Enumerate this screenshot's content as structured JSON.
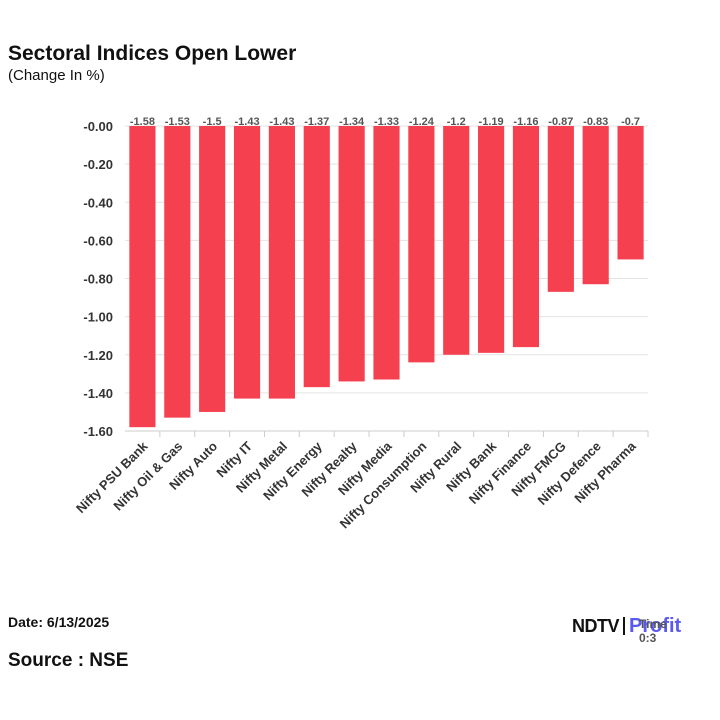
{
  "chart_data": {
    "type": "bar",
    "title": "Sectoral Indices Open Lower",
    "subtitle": "(Change In %)",
    "categories": [
      "Nifty PSU Bank",
      "Nifty Oil & Gas",
      "Nifty Auto",
      "Nifty IT",
      "Nifty Metal",
      "Nifty Energy",
      "Nifty Realty",
      "Nifty Media",
      "Nifty Consumption",
      "Nifty Rural",
      "Nifty Bank",
      "Nifty Finance",
      "Nifty FMCG",
      "Nifty Defence",
      "Nifty Pharma"
    ],
    "values": [
      -1.58,
      -1.53,
      -1.5,
      -1.43,
      -1.43,
      -1.37,
      -1.34,
      -1.33,
      -1.24,
      -1.2,
      -1.19,
      -1.16,
      -0.87,
      -0.83,
      -0.7
    ],
    "value_labels": [
      "-1.58",
      "-1.53",
      "-1.5",
      "-1.43",
      "-1.43",
      "-1.37",
      "-1.34",
      "-1.33",
      "-1.24",
      "-1.2",
      "-1.19",
      "-1.16",
      "-0.87",
      "-0.83",
      "-0.7"
    ],
    "yticks": [
      -0.0,
      -0.2,
      -0.4,
      -0.6,
      -0.8,
      -1.0,
      -1.2,
      -1.4,
      -1.6
    ],
    "ytick_labels": [
      "-0.00",
      "-0.20",
      "-0.40",
      "-0.60",
      "-0.80",
      "-1.00",
      "-1.20",
      "-1.40",
      "-1.60"
    ],
    "ylim": [
      -1.6,
      0
    ],
    "xlabel": "",
    "ylabel": "",
    "grid": true,
    "bar_color": "#f5414f"
  },
  "footer": {
    "date": "Date: 6/13/2025",
    "source": "Source : NSE"
  },
  "logo": {
    "brand": "NDTV",
    "product": "Profit",
    "overlay_text": "Time 0:3"
  }
}
